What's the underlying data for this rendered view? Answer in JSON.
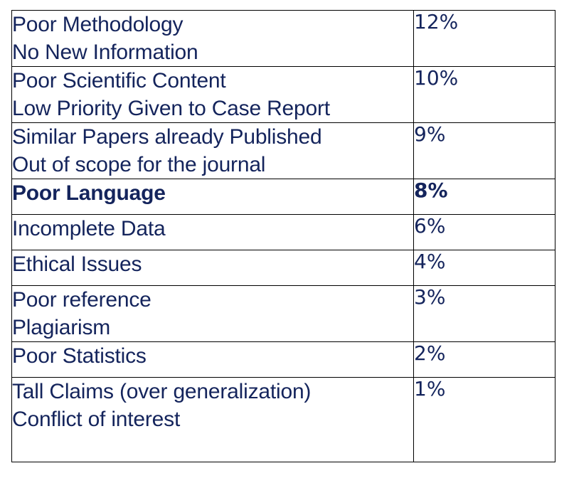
{
  "rows": [
    {
      "reason_lines": [
        "Poor Methodology",
        "No New Information"
      ],
      "percent": "12%"
    },
    {
      "reason_lines": [
        "Poor Scientific Content",
        "Low Priority Given to Case Report"
      ],
      "percent": "10%"
    },
    {
      "reason_lines": [
        "Similar Papers already Published",
        "Out of scope for the journal"
      ],
      "percent": "9%"
    },
    {
      "reason_lines": [
        "Poor Language"
      ],
      "percent": "8%"
    },
    {
      "reason_lines": [
        "Incomplete Data"
      ],
      "percent": "6%"
    },
    {
      "reason_lines": [
        "Ethical Issues"
      ],
      "percent": "4%"
    },
    {
      "reason_lines": [
        "Poor reference",
        "Plagiarism"
      ],
      "percent": "3%"
    },
    {
      "reason_lines": [
        "Poor Statistics"
      ],
      "percent": "2%"
    },
    {
      "reason_lines": [
        "Tall Claims (over generalization)",
        "Conflict of interest"
      ],
      "percent": "1%"
    }
  ],
  "colors": {
    "text": "#14245c",
    "border": "#000000"
  }
}
